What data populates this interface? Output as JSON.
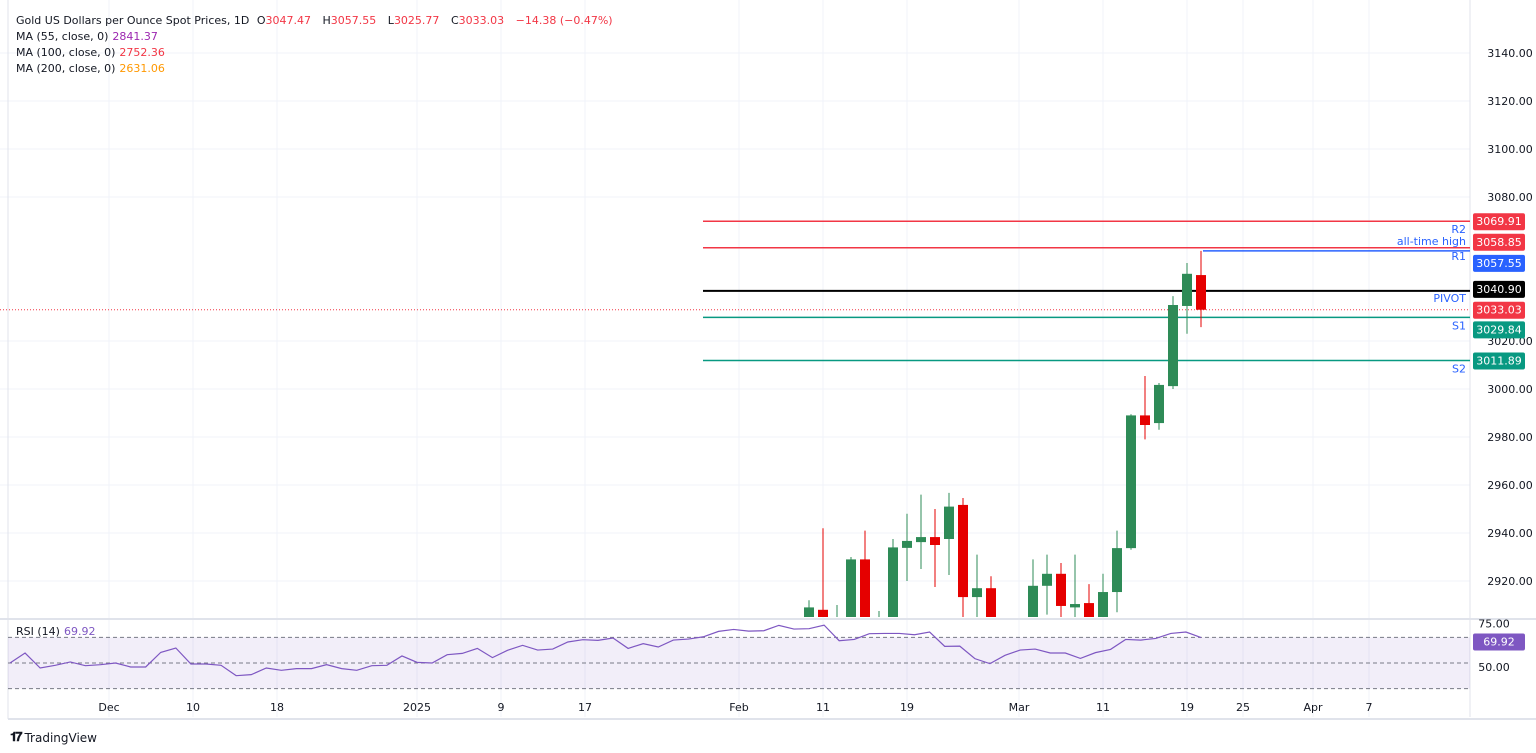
{
  "header": {
    "title": "Gold US Dollars per Ounce Spot Prices, 1D",
    "open_prefix": "O",
    "open": "3047.47",
    "high_prefix": "H",
    "high": "3057.55",
    "low_prefix": "L",
    "low": "3025.77",
    "close_prefix": "C",
    "close": "3033.03",
    "change": "−14.38 (−0.47%)"
  },
  "indicators": [
    {
      "label": "MA (55, close, 0)",
      "value": "2841.37",
      "color": "#9c27b0"
    },
    {
      "label": "MA (100, close, 0)",
      "value": "2752.36",
      "color": "#f23645"
    },
    {
      "label": "MA (200, close, 0)",
      "value": "2631.06",
      "color": "#ff9800"
    }
  ],
  "rsi": {
    "label": "RSI (14)",
    "value": "69.92",
    "color": "#7e57c2"
  },
  "brand": "TradingView",
  "chart_data": {
    "type": "candlestick",
    "price_axis": {
      "ticks": [
        "3140.00",
        "3120.00",
        "3100.00",
        "3080.00",
        "3020.00",
        "3000.00",
        "2980.00",
        "2960.00",
        "2940.00",
        "2920.00"
      ],
      "tick_values": [
        3140,
        3120,
        3100,
        3080,
        3020,
        3000,
        2980,
        2960,
        2940,
        2920
      ],
      "ylim": [
        2905,
        3160
      ]
    },
    "time_axis": {
      "ticks": [
        "Dec",
        "10",
        "18",
        "2025",
        "9",
        "17",
        "Feb",
        "11",
        "19",
        "Mar",
        "11",
        "19",
        "25",
        "Apr",
        "7"
      ],
      "tick_dates": [
        "2024-12-02",
        "2024-12-10",
        "2024-12-18",
        "2025-01-01",
        "2025-01-09",
        "2025-01-17",
        "2025-02-03",
        "2025-02-11",
        "2025-02-19",
        "2025-03-03",
        "2025-03-11",
        "2025-03-19",
        "2025-03-25",
        "2025-04-01",
        "2025-04-07"
      ]
    },
    "candles": [
      {
        "date": "2025-02-10",
        "o": 2890,
        "h": 2912,
        "l": 2880,
        "c": 2909
      },
      {
        "date": "2025-02-11",
        "o": 2908,
        "h": 2942,
        "l": 2880,
        "c": 2898
      },
      {
        "date": "2025-02-12",
        "o": 2895,
        "h": 2910,
        "l": 2880,
        "c": 2900
      },
      {
        "date": "2025-02-13",
        "o": 2895,
        "h": 2930,
        "l": 2880,
        "c": 2929
      },
      {
        "date": "2025-02-14",
        "o": 2929,
        "h": 2941,
        "l": 2880,
        "c": 2895
      },
      {
        "date": "2025-02-17",
        "o": 2895,
        "h": 2907.5,
        "l": 2880,
        "c": 2900
      },
      {
        "date": "2025-02-18",
        "o": 2895,
        "h": 2937.5,
        "l": 2880,
        "c": 2934
      },
      {
        "date": "2025-02-19",
        "o": 2933.8,
        "h": 2948,
        "l": 2920,
        "c": 2936.7
      },
      {
        "date": "2025-02-20",
        "o": 2936.2,
        "h": 2956,
        "l": 2925,
        "c": 2938.3
      },
      {
        "date": "2025-02-21",
        "o": 2938.3,
        "h": 2950,
        "l": 2917.5,
        "c": 2935
      },
      {
        "date": "2025-02-24",
        "o": 2937.5,
        "h": 2956.7,
        "l": 2922.5,
        "c": 2951
      },
      {
        "date": "2025-02-25",
        "o": 2951.7,
        "h": 2954.6,
        "l": 2890,
        "c": 2913.3
      },
      {
        "date": "2025-02-26",
        "o": 2913.3,
        "h": 2931,
        "l": 2890,
        "c": 2917
      },
      {
        "date": "2025-02-27",
        "o": 2917,
        "h": 2922,
        "l": 2885,
        "c": 2900
      },
      {
        "date": "2025-03-04",
        "o": 2900,
        "h": 2929,
        "l": 2890,
        "c": 2918
      },
      {
        "date": "2025-03-05",
        "o": 2918,
        "h": 2931,
        "l": 2906,
        "c": 2923
      },
      {
        "date": "2025-03-06",
        "o": 2923,
        "h": 2927.5,
        "l": 2895,
        "c": 2909.6
      },
      {
        "date": "2025-03-07",
        "o": 2909,
        "h": 2931,
        "l": 2895,
        "c": 2910.4
      },
      {
        "date": "2025-03-10",
        "o": 2910.8,
        "h": 2918.7,
        "l": 2890,
        "c": 2900
      },
      {
        "date": "2025-03-11",
        "o": 2900,
        "h": 2923,
        "l": 2895,
        "c": 2915.4
      },
      {
        "date": "2025-03-12",
        "o": 2915.4,
        "h": 2941,
        "l": 2907,
        "c": 2933.7
      },
      {
        "date": "2025-03-13",
        "o": 2933.7,
        "h": 2989.5,
        "l": 2933,
        "c": 2989
      },
      {
        "date": "2025-03-14",
        "o": 2989,
        "h": 3005.4,
        "l": 2979,
        "c": 2985
      },
      {
        "date": "2025-03-17",
        "o": 2985.8,
        "h": 3002.5,
        "l": 2983,
        "c": 3001.7
      },
      {
        "date": "2025-03-18",
        "o": 3001.2,
        "h": 3038.7,
        "l": 3000,
        "c": 3035
      },
      {
        "date": "2025-03-19",
        "o": 3034.6,
        "h": 3052.5,
        "l": 3023,
        "c": 3048
      },
      {
        "date": "2025-03-20",
        "o": 3047.47,
        "h": 3057.55,
        "l": 3025.77,
        "c": 3033.03
      }
    ],
    "levels": [
      {
        "name": "R2",
        "value": 3069.91,
        "label": "3069.91",
        "color": "#f23645"
      },
      {
        "name": "R1",
        "value": 3058.85,
        "label": "3058.85",
        "color": "#f23645"
      },
      {
        "name": "all-time high",
        "value": 3057.55,
        "label": "3057.55",
        "color": "#2962ff"
      },
      {
        "name": "PIVOT",
        "value": 3040.9,
        "label": "3040.90",
        "color": "#000000"
      },
      {
        "name": "S1",
        "value": 3029.84,
        "label": "3029.84",
        "color": "#089981"
      },
      {
        "name": "S2",
        "value": 3011.89,
        "label": "3011.89",
        "color": "#089981"
      }
    ],
    "last_price": {
      "value": 3033.03,
      "label": "3033.03",
      "color": "#f23645"
    },
    "rsi": {
      "period": 14,
      "bands": [
        70,
        50,
        30
      ],
      "band_labels": [
        "75.00",
        "50.00"
      ],
      "values": [
        50,
        57.8,
        46.1,
        48.2,
        50.8,
        47.9,
        48.7,
        50,
        46.9,
        46.9,
        58.3,
        61.7,
        49.2,
        49.2,
        48.2,
        40.1,
        40.9,
        46.1,
        44.3,
        45.6,
        45.6,
        48.7,
        45.6,
        44.3,
        47.9,
        48.2,
        55.5,
        50.5,
        50,
        56.5,
        57.5,
        61.4,
        54.2,
        59.9,
        63.8,
        60.1,
        60.9,
        66.4,
        68.2,
        67.7,
        69.5,
        61.4,
        65.1,
        62.5,
        67.9,
        68.7,
        70.5,
        74.7,
        76.2,
        74.9,
        75.2,
        79.4,
        76.5,
        76.8,
        79.6,
        67.4,
        68.4,
        72.9,
        73.1,
        73.1,
        72.1,
        74.2,
        63,
        63.2,
        53.4,
        49.5,
        56,
        60.1,
        60.9,
        57.8,
        57.8,
        53.6,
        58.1,
        60.6,
        68.4,
        67.9,
        69.2,
        73.1,
        74.2,
        69.92
      ],
      "last_label": "69.92"
    },
    "colors": {
      "up": "#2e8b57",
      "down": "#e50000",
      "grid": "#f0f3fa"
    }
  }
}
